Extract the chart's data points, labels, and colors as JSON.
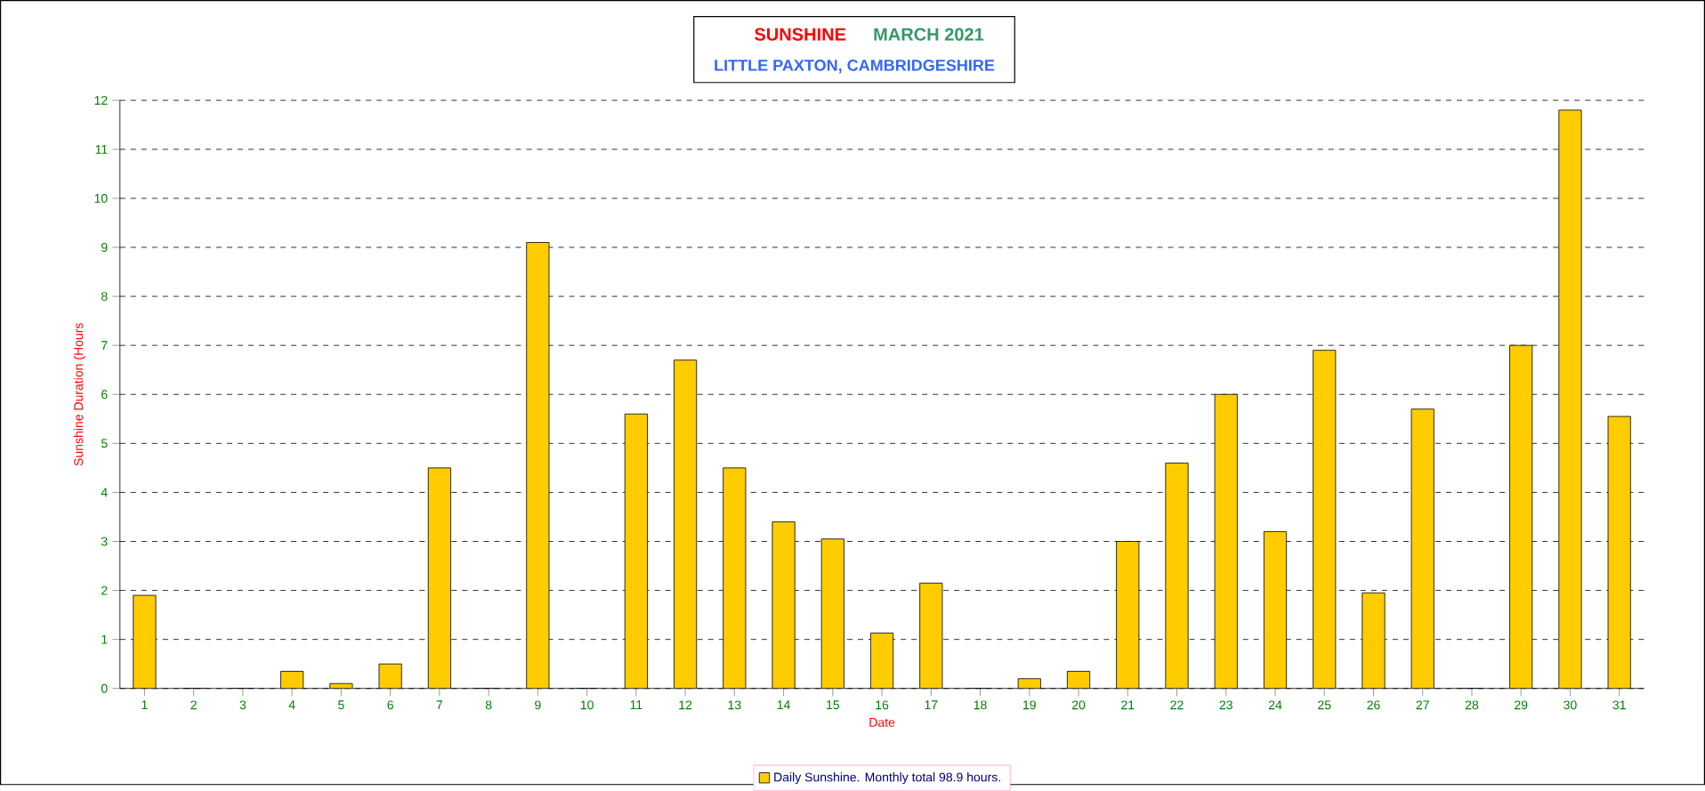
{
  "chart_data": {
    "type": "bar",
    "title": "SUNSHINE",
    "subtitle": "LITTLE PAXTON, CAMBRIDGESHIRE",
    "annotations": [
      "MARCH 2021"
    ],
    "xlabel": "Date",
    "ylabel": "Sunshine Duration (Hours",
    "categories": [
      "1",
      "2",
      "3",
      "4",
      "5",
      "6",
      "7",
      "8",
      "9",
      "10",
      "11",
      "12",
      "13",
      "14",
      "15",
      "16",
      "17",
      "18",
      "19",
      "20",
      "21",
      "22",
      "23",
      "24",
      "25",
      "26",
      "27",
      "28",
      "29",
      "30",
      "31"
    ],
    "series": [
      {
        "name": "Daily Sunshine. Monthly total 98.9 hours.",
        "color": "#ffcc00",
        "values": [
          1.9,
          0,
          0,
          0.35,
          0.1,
          0.5,
          4.5,
          0,
          9.1,
          0,
          5.6,
          6.7,
          4.5,
          3.4,
          3.05,
          1.13,
          2.15,
          0,
          0.2,
          0.35,
          3.0,
          4.6,
          6.0,
          3.2,
          6.9,
          1.95,
          5.7,
          0,
          7.0,
          11.8,
          5.55
        ]
      }
    ],
    "ylim": [
      0,
      12
    ],
    "yticks": [
      0,
      1,
      2,
      3,
      4,
      5,
      6,
      7,
      8,
      9,
      10,
      11,
      12
    ],
    "grid": "y",
    "legend": "bottom"
  }
}
